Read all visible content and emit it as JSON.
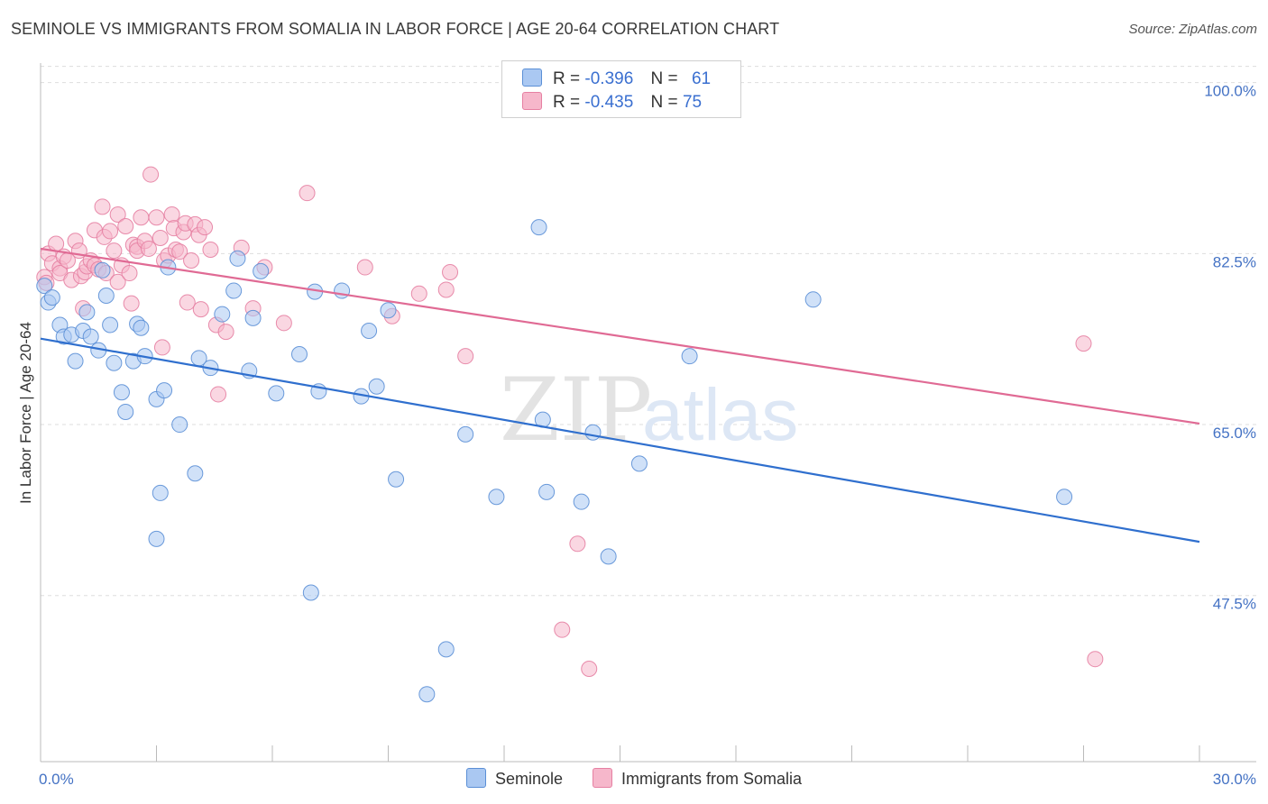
{
  "title": "SEMINOLE VS IMMIGRANTS FROM SOMALIA IN LABOR FORCE | AGE 20-64 CORRELATION CHART",
  "source": "Source: ZipAtlas.com",
  "watermark": {
    "zip": "ZIP",
    "atlas": "atlas"
  },
  "legend_stats": [
    {
      "r_label": "R =",
      "r_value": "-0.396",
      "n_label": "N =",
      "n_value": "61",
      "color": "#aac8f2"
    },
    {
      "r_label": "R =",
      "r_value": "-0.435",
      "n_label": "N =",
      "n_value": "75",
      "color": "#f6b7cb"
    }
  ],
  "bottom_legend": [
    "Seminole",
    "Immigrants from Somalia"
  ],
  "colors": {
    "seminole_fill": "#aac8f2",
    "seminole_stroke": "#5b8fd6",
    "seminole_line": "#2f6fce",
    "somalia_fill": "#f6b7cb",
    "somalia_stroke": "#e680a2",
    "somalia_line": "#e06a94",
    "tick_label": "#4472c4",
    "grid": "#dddddd"
  },
  "chart_data": {
    "type": "scatter",
    "title": "SEMINOLE VS IMMIGRANTS FROM SOMALIA IN LABOR FORCE | AGE 20-64 CORRELATION CHART",
    "xlabel": "",
    "ylabel": "In Labor Force | Age 20-64",
    "xlim": [
      0,
      30
    ],
    "ylim": [
      30.5,
      102
    ],
    "x_tick_labels": [
      "0.0%",
      "30.0%"
    ],
    "y_ticks": [
      47.5,
      65.0,
      82.5,
      100.0
    ],
    "y_tick_labels": [
      "47.5%",
      "65.0%",
      "82.5%",
      "100.0%"
    ],
    "grid": true,
    "series": [
      {
        "name": "Seminole",
        "points": [
          [
            0.1,
            79.2
          ],
          [
            0.2,
            77.5
          ],
          [
            0.3,
            78.0
          ],
          [
            0.5,
            75.2
          ],
          [
            0.6,
            74.0
          ],
          [
            0.8,
            74.2
          ],
          [
            0.9,
            71.5
          ],
          [
            1.1,
            74.6
          ],
          [
            1.2,
            76.5
          ],
          [
            1.3,
            74.0
          ],
          [
            1.5,
            72.6
          ],
          [
            1.6,
            80.8
          ],
          [
            1.7,
            78.2
          ],
          [
            1.8,
            75.2
          ],
          [
            1.9,
            71.3
          ],
          [
            2.1,
            68.3
          ],
          [
            2.2,
            66.3
          ],
          [
            2.4,
            71.5
          ],
          [
            2.5,
            75.3
          ],
          [
            2.6,
            74.9
          ],
          [
            2.7,
            72.0
          ],
          [
            3.0,
            67.6
          ],
          [
            3.1,
            58.0
          ],
          [
            3.0,
            53.3
          ],
          [
            3.2,
            68.5
          ],
          [
            3.3,
            81.1
          ],
          [
            3.6,
            65.0
          ],
          [
            4.0,
            60.0
          ],
          [
            4.1,
            71.8
          ],
          [
            4.4,
            70.8
          ],
          [
            4.7,
            76.3
          ],
          [
            5.0,
            78.7
          ],
          [
            5.1,
            82.0
          ],
          [
            5.4,
            70.5
          ],
          [
            5.5,
            75.9
          ],
          [
            5.7,
            80.7
          ],
          [
            6.1,
            68.2
          ],
          [
            6.7,
            72.2
          ],
          [
            7.0,
            47.8
          ],
          [
            7.1,
            78.6
          ],
          [
            7.2,
            68.4
          ],
          [
            7.8,
            78.7
          ],
          [
            8.3,
            67.9
          ],
          [
            8.5,
            74.6
          ],
          [
            8.7,
            68.9
          ],
          [
            9.0,
            76.7
          ],
          [
            9.2,
            59.4
          ],
          [
            10.0,
            37.4
          ],
          [
            10.5,
            42.0
          ],
          [
            11.0,
            64.0
          ],
          [
            11.8,
            57.6
          ],
          [
            12.9,
            85.2
          ],
          [
            13.0,
            65.5
          ],
          [
            13.1,
            58.1
          ],
          [
            14.0,
            57.1
          ],
          [
            14.3,
            64.2
          ],
          [
            14.7,
            51.5
          ],
          [
            15.5,
            61.0
          ],
          [
            16.8,
            72.0
          ],
          [
            20.0,
            77.8
          ],
          [
            26.5,
            57.6
          ]
        ]
      },
      {
        "name": "Immigrants from Somalia",
        "points": [
          [
            0.1,
            80.1
          ],
          [
            0.15,
            79.5
          ],
          [
            0.2,
            82.5
          ],
          [
            0.3,
            81.5
          ],
          [
            0.4,
            83.5
          ],
          [
            0.5,
            81.0
          ],
          [
            0.5,
            80.5
          ],
          [
            0.6,
            82.2
          ],
          [
            0.7,
            81.8
          ],
          [
            0.8,
            79.8
          ],
          [
            0.9,
            83.8
          ],
          [
            1.0,
            82.8
          ],
          [
            1.05,
            80.2
          ],
          [
            1.1,
            76.9
          ],
          [
            1.15,
            80.6
          ],
          [
            1.2,
            81.2
          ],
          [
            1.3,
            81.8
          ],
          [
            1.4,
            81.3
          ],
          [
            1.4,
            84.9
          ],
          [
            1.5,
            80.9
          ],
          [
            1.6,
            87.3
          ],
          [
            1.65,
            84.2
          ],
          [
            1.7,
            80.5
          ],
          [
            1.8,
            84.8
          ],
          [
            1.9,
            82.8
          ],
          [
            2.0,
            79.6
          ],
          [
            2.0,
            86.5
          ],
          [
            2.1,
            81.3
          ],
          [
            2.2,
            85.3
          ],
          [
            2.3,
            80.5
          ],
          [
            2.35,
            77.4
          ],
          [
            2.4,
            83.4
          ],
          [
            2.5,
            83.2
          ],
          [
            2.5,
            82.8
          ],
          [
            2.6,
            86.2
          ],
          [
            2.7,
            83.8
          ],
          [
            2.8,
            83.0
          ],
          [
            2.85,
            90.6
          ],
          [
            3.0,
            86.2
          ],
          [
            3.1,
            84.1
          ],
          [
            3.15,
            72.9
          ],
          [
            3.2,
            81.8
          ],
          [
            3.3,
            82.3
          ],
          [
            3.4,
            86.5
          ],
          [
            3.45,
            85.1
          ],
          [
            3.5,
            82.9
          ],
          [
            3.6,
            82.7
          ],
          [
            3.7,
            84.7
          ],
          [
            3.75,
            85.6
          ],
          [
            3.8,
            77.5
          ],
          [
            3.9,
            81.8
          ],
          [
            4.0,
            85.5
          ],
          [
            4.1,
            84.4
          ],
          [
            4.15,
            76.8
          ],
          [
            4.25,
            85.2
          ],
          [
            4.4,
            82.9
          ],
          [
            4.6,
            68.1
          ],
          [
            4.55,
            75.2
          ],
          [
            4.8,
            74.5
          ],
          [
            5.2,
            83.1
          ],
          [
            5.5,
            76.9
          ],
          [
            5.8,
            81.1
          ],
          [
            6.3,
            75.4
          ],
          [
            6.9,
            88.7
          ],
          [
            8.4,
            81.1
          ],
          [
            9.1,
            76.1
          ],
          [
            9.8,
            78.4
          ],
          [
            10.5,
            78.8
          ],
          [
            10.6,
            80.6
          ],
          [
            11.0,
            72.0
          ],
          [
            13.9,
            52.8
          ],
          [
            13.5,
            44.0
          ],
          [
            14.2,
            40.0
          ],
          [
            27.0,
            73.3
          ],
          [
            27.3,
            41.0
          ]
        ]
      }
    ],
    "trend_lines": [
      {
        "name": "Seminole",
        "x": [
          0,
          30
        ],
        "y": [
          73.8,
          53.0
        ]
      },
      {
        "name": "Immigrants from Somalia",
        "x": [
          0,
          30
        ],
        "y": [
          83.0,
          65.1
        ]
      }
    ]
  }
}
